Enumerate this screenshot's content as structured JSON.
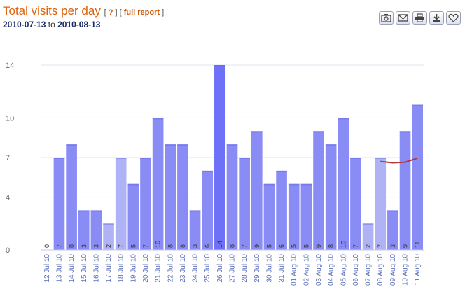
{
  "header": {
    "title": "Total visits per day",
    "help": "?",
    "full_report": "full report",
    "date_from": "2010-07-13",
    "date_to_word": "to",
    "date_to": "2010-08-13"
  },
  "toolbar": [
    {
      "name": "camera-icon"
    },
    {
      "name": "mail-icon"
    },
    {
      "name": "print-icon"
    },
    {
      "name": "download-icon"
    },
    {
      "name": "heart-icon"
    }
  ],
  "colors": {
    "bar": "#8a8cf6",
    "bar_light": "#b0b2f6",
    "bar_peak": "#6e70f8",
    "trend": "#b03a3a"
  },
  "chart_data": {
    "type": "bar",
    "categories": [
      "12 Jul 10",
      "13 Jul 10",
      "14 Jul 10",
      "15 Jul 10",
      "16 Jul 10",
      "17 Jul 10",
      "18 Jul 10",
      "19 Jul 10",
      "20 Jul 10",
      "21 Jul 10",
      "22 Jul 10",
      "23 Jul 10",
      "24 Jul 10",
      "25 Jul 10",
      "26 Jul 10",
      "27 Jul 10",
      "28 Jul 10",
      "29 Jul 10",
      "30 Jul 10",
      "31 Jul 10",
      "01 Aug 10",
      "02 Aug 10",
      "03 Aug 10",
      "04 Aug 10",
      "05 Aug 10",
      "06 Aug 10",
      "07 Aug 10",
      "08 Aug 10",
      "09 Aug 10",
      "10 Aug 10",
      "11 Aug 10"
    ],
    "values": [
      0,
      7,
      8,
      3,
      3,
      2,
      7,
      5,
      7,
      10,
      8,
      8,
      3,
      6,
      14,
      8,
      7,
      9,
      5,
      6,
      5,
      5,
      9,
      8,
      10,
      7,
      2,
      7,
      3,
      9,
      11
    ],
    "ytick_values": [
      0,
      4,
      7,
      10,
      14
    ],
    "ytick_labels": [
      "0",
      "4",
      "7",
      "10",
      "14"
    ],
    "ylim": [
      0,
      14
    ],
    "trend": {
      "x": [
        "08 Aug 10",
        "09 Aug 10",
        "10 Aug 10",
        "11 Aug 10"
      ],
      "values": [
        6.7,
        6.6,
        6.65,
        6.95
      ]
    },
    "grid": true
  }
}
